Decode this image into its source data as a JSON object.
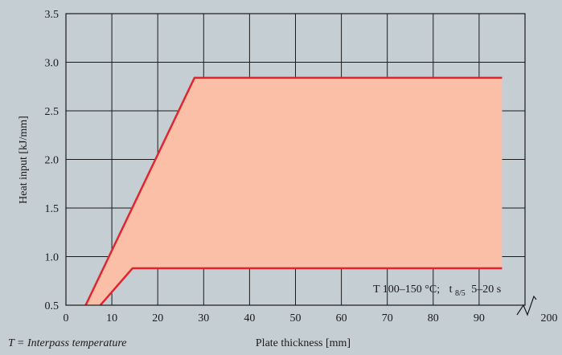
{
  "chart_data": {
    "type": "area",
    "xlabel": "Plate thickness [mm]",
    "ylabel": "Heat input [kJ/mm]",
    "xlim": [
      0,
      100
    ],
    "ylim": [
      0.5,
      3.5
    ],
    "x_ticks": [
      "0",
      "10",
      "20",
      "30",
      "40",
      "50",
      "60",
      "70",
      "80",
      "90"
    ],
    "x_break_tick": "200",
    "y_ticks": [
      "0.5",
      "1.0",
      "1.5",
      "2.0",
      "2.5",
      "3.0",
      "3.5"
    ],
    "grid": true,
    "region": {
      "upper": {
        "x": [
          4.3,
          28,
          95
        ],
        "y": [
          0.5,
          2.84,
          2.84
        ]
      },
      "lower": {
        "x": [
          7.5,
          14.5,
          95
        ],
        "y": [
          0.5,
          0.88,
          0.88
        ]
      }
    },
    "colors": {
      "fill": "#fbbfa8",
      "line": "#e0252e",
      "grid": "#1a1a1a",
      "background": "#c5ced3"
    },
    "annotation": {
      "prefix": "T 100–150 °C;",
      "t": "t",
      "sub": "8/5",
      "suffix": "5–20 s"
    },
    "footnote": "T = Interpass temperature"
  }
}
